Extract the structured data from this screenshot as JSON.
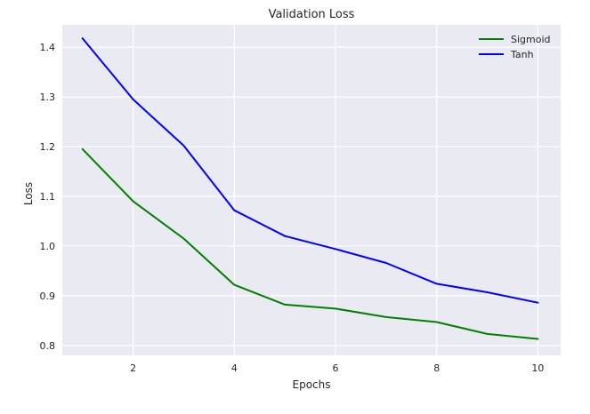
{
  "chart_data": {
    "type": "line",
    "title": "Validation Loss",
    "xlabel": "Epochs",
    "ylabel": "Loss",
    "x": [
      1,
      2,
      3,
      4,
      5,
      6,
      7,
      8,
      9,
      10
    ],
    "xlim": [
      0.6,
      10.45
    ],
    "ylim": [
      0.78,
      1.445
    ],
    "xticks": [
      2,
      4,
      6,
      8,
      10
    ],
    "xtick_labels": [
      "2",
      "4",
      "6",
      "8",
      "10"
    ],
    "yticks": [
      0.8,
      0.9,
      1.0,
      1.1,
      1.2,
      1.3,
      1.4
    ],
    "ytick_labels": [
      "0.8",
      "0.9",
      "1.0",
      "1.1",
      "1.2",
      "1.3",
      "1.4"
    ],
    "grid": true,
    "legend_position": "top-right",
    "series": [
      {
        "name": "Sigmoid",
        "color": "#008000",
        "values": [
          1.195,
          1.09,
          1.015,
          0.922,
          0.882,
          0.874,
          0.857,
          0.847,
          0.823,
          0.813
        ]
      },
      {
        "name": "Tanh",
        "color": "#0000ff",
        "values": [
          1.418,
          1.295,
          1.202,
          1.072,
          1.02,
          0.994,
          0.966,
          0.924,
          0.907,
          0.886
        ]
      }
    ]
  }
}
